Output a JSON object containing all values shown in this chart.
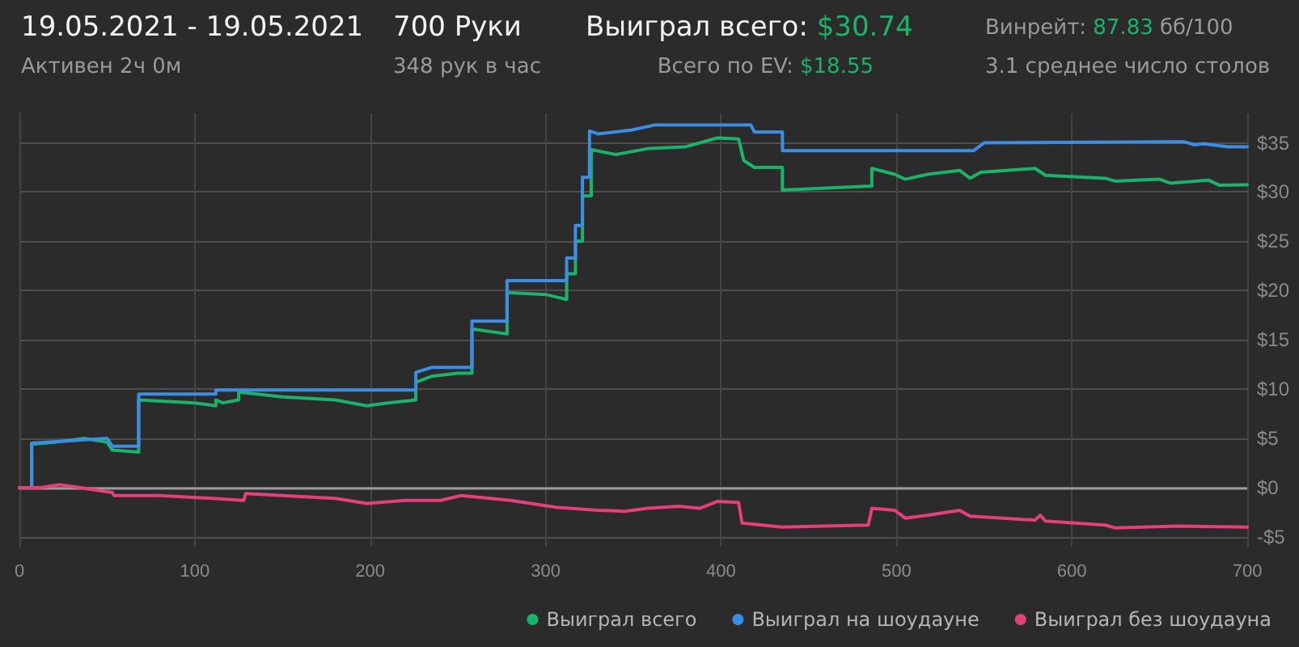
{
  "chart_data": {
    "type": "line",
    "title": "19.05.2021 - 19.05.2021",
    "subtitle": "Активен 2ч 0м",
    "annotations": [
      "700 Руки",
      "348 рук в час",
      "Выиграл всего: $30.74",
      "Всего по EV: $18.55",
      "Винрейт: 87.83 бб/100",
      "3.1 среднее число столов"
    ],
    "xlim": [
      0,
      700
    ],
    "xticks": [
      0,
      100,
      200,
      300,
      400,
      500,
      600,
      700
    ],
    "ylim": [
      -6,
      38
    ],
    "yticks": [
      {
        "value": -5,
        "label": "-$5"
      },
      {
        "value": 0,
        "label": "$0"
      },
      {
        "value": 5,
        "label": "$5"
      },
      {
        "value": 10,
        "label": "$10"
      },
      {
        "value": 15,
        "label": "$15"
      },
      {
        "value": 20,
        "label": "$20"
      },
      {
        "value": 25,
        "label": "$25"
      },
      {
        "value": 30,
        "label": "$30"
      },
      {
        "value": 35,
        "label": "$35"
      }
    ],
    "grid": true,
    "legend": "bottom right",
    "marker": "none",
    "line_style": "solid",
    "ref_lines": [
      {
        "axis": "y",
        "value": 0,
        "color": "#9a9a9a"
      }
    ],
    "series": [
      {
        "name": "Выиграл всего",
        "color": "#1bb36c",
        "x": [
          0,
          7,
          7,
          20,
          37,
          50,
          53,
          68,
          68,
          100,
          112,
          112,
          116,
          125,
          125,
          150,
          180,
          198,
          210,
          226,
          226,
          235,
          250,
          258,
          258,
          278,
          278,
          300,
          312,
          312,
          317,
          317,
          321,
          321,
          326,
          326,
          340,
          358,
          380,
          398,
          410,
          413,
          419,
          435,
          435,
          484,
          486,
          486,
          499,
          505,
          518,
          536,
          542,
          548,
          579,
          585,
          619,
          625,
          650,
          656,
          678,
          684,
          700
        ],
        "values": [
          0,
          0,
          4.4,
          4.6,
          5.0,
          4.6,
          3.8,
          3.6,
          8.9,
          8.6,
          8.3,
          8.9,
          8.6,
          8.9,
          9.7,
          9.2,
          8.9,
          8.3,
          8.6,
          8.9,
          10.7,
          11.3,
          11.6,
          11.6,
          16.1,
          15.6,
          19.8,
          19.6,
          19.1,
          21.7,
          21.7,
          25.0,
          25.0,
          29.6,
          29.6,
          34.3,
          33.8,
          34.4,
          34.6,
          35.5,
          35.4,
          33.2,
          32.5,
          32.5,
          30.2,
          30.6,
          30.6,
          32.4,
          31.8,
          31.3,
          31.8,
          32.2,
          31.4,
          32.0,
          32.4,
          31.7,
          31.4,
          31.1,
          31.3,
          30.9,
          31.2,
          30.7,
          30.74
        ]
      },
      {
        "name": "Выиграл на шоудауне",
        "color": "#3a8ee6",
        "x": [
          0,
          7,
          7,
          50,
          53,
          68,
          68,
          112,
          112,
          226,
          226,
          235,
          258,
          258,
          278,
          278,
          312,
          312,
          317,
          317,
          321,
          321,
          325,
          325,
          330,
          349,
          362,
          417,
          419,
          435,
          435,
          544,
          550,
          664,
          670,
          675,
          689,
          700
        ],
        "values": [
          0,
          0,
          4.5,
          5.0,
          4.2,
          4.2,
          9.5,
          9.5,
          9.9,
          9.9,
          11.7,
          12.2,
          12.2,
          16.9,
          16.9,
          21.0,
          21.0,
          23.3,
          23.3,
          26.6,
          26.6,
          31.5,
          31.5,
          36.2,
          35.9,
          36.3,
          36.8,
          36.8,
          36.1,
          36.1,
          34.2,
          34.2,
          35.0,
          35.1,
          34.8,
          34.9,
          34.6,
          34.6
        ]
      },
      {
        "name": "Выиграл без шоудауна",
        "color": "#e5407a",
        "x": [
          0,
          12,
          23,
          53,
          54,
          80,
          110,
          128,
          129,
          180,
          198,
          220,
          240,
          252,
          280,
          306,
          330,
          345,
          358,
          376,
          388,
          398,
          410,
          412,
          435,
          484,
          486,
          499,
          505,
          518,
          536,
          542,
          579,
          582,
          585,
          619,
          625,
          660,
          700
        ],
        "values": [
          0,
          0,
          0.3,
          -0.5,
          -0.8,
          -0.8,
          -1.1,
          -1.3,
          -0.6,
          -1.1,
          -1.6,
          -1.3,
          -1.3,
          -0.8,
          -1.3,
          -2.0,
          -2.3,
          -2.4,
          -2.1,
          -1.9,
          -2.1,
          -1.4,
          -1.5,
          -3.6,
          -4.0,
          -3.8,
          -2.1,
          -2.3,
          -3.1,
          -2.8,
          -2.3,
          -2.9,
          -3.3,
          -2.8,
          -3.4,
          -3.8,
          -4.1,
          -3.9,
          -4.0
        ]
      }
    ]
  }
}
